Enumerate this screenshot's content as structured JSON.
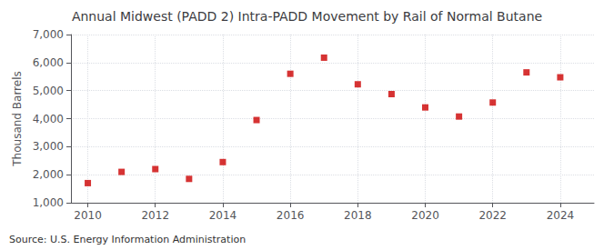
{
  "chart_data": {
    "type": "scatter",
    "title": "Annual Midwest (PADD 2) Intra-PADD Movement by Rail of Normal Butane",
    "ylabel": "Thousand Barrels",
    "source": "Source: U.S. Energy Information Administration",
    "x": [
      2010,
      2011,
      2012,
      2013,
      2014,
      2015,
      2016,
      2017,
      2018,
      2019,
      2020,
      2021,
      2022,
      2023,
      2024
    ],
    "values": [
      1700,
      2100,
      2200,
      1850,
      2450,
      3950,
      5600,
      6175,
      5225,
      4875,
      4400,
      4075,
      4575,
      5650,
      5475
    ],
    "color": "#cc0000",
    "marker": "square",
    "xlim": [
      2009.5,
      2025.0
    ],
    "xticks": [
      2010,
      2012,
      2014,
      2016,
      2018,
      2020,
      2022,
      2024
    ],
    "ylim": [
      1000,
      7000
    ],
    "yticks": [
      {
        "value": 1000,
        "label": "1,000"
      },
      {
        "value": 2000,
        "label": "2,000"
      },
      {
        "value": 3000,
        "label": "3,000"
      },
      {
        "value": 4000,
        "label": "4,000"
      },
      {
        "value": 5000,
        "label": "5,000"
      },
      {
        "value": 6000,
        "label": "6,000"
      },
      {
        "value": 7000,
        "label": "7,000"
      }
    ],
    "grid": true
  }
}
